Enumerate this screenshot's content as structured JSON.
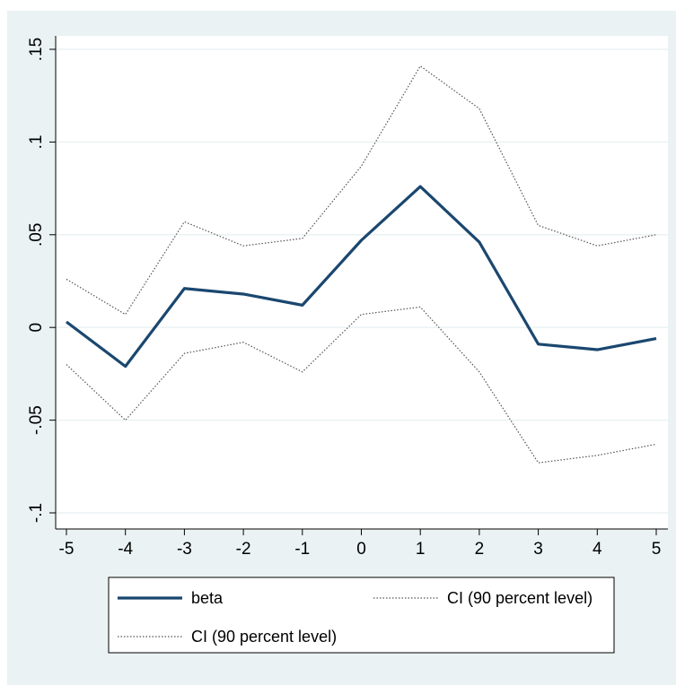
{
  "chart_data": {
    "type": "line",
    "x": [
      -5,
      -4,
      -3,
      -2,
      -1,
      0,
      1,
      2,
      3,
      4,
      5
    ],
    "series": [
      {
        "name": "beta",
        "style": "solid",
        "color": "#1a476f",
        "values": [
          0.003,
          -0.021,
          0.021,
          0.018,
          0.012,
          0.047,
          0.076,
          0.046,
          -0.009,
          -0.012,
          -0.006
        ]
      },
      {
        "name": "CI (90 percent level)",
        "style": "dotted",
        "color": "#555555",
        "values": [
          0.026,
          0.007,
          0.057,
          0.044,
          0.048,
          0.087,
          0.141,
          0.118,
          0.055,
          0.044,
          0.05
        ]
      },
      {
        "name": "CI (90 percent level)",
        "style": "dotted",
        "color": "#555555",
        "values": [
          -0.02,
          -0.05,
          -0.014,
          -0.008,
          -0.024,
          0.007,
          0.011,
          -0.024,
          -0.073,
          -0.069,
          -0.063
        ]
      }
    ],
    "xticks": [
      "-5",
      "-4",
      "-3",
      "-2",
      "-1",
      "0",
      "1",
      "2",
      "3",
      "4",
      "5"
    ],
    "yticks": [
      {
        "value": -0.1,
        "label": "-.1"
      },
      {
        "value": -0.05,
        "label": "-.05"
      },
      {
        "value": 0,
        "label": "0"
      },
      {
        "value": 0.05,
        "label": ".05"
      },
      {
        "value": 0.1,
        "label": ".1"
      },
      {
        "value": 0.15,
        "label": ".15"
      }
    ],
    "xlim": [
      -5,
      5
    ],
    "ylim": [
      -0.1,
      0.15
    ],
    "grid": true,
    "legend_position": "bottom",
    "colors": {
      "background": "#eaf2f3",
      "plot_area": "#ffffff",
      "grid": "#eaf2f3"
    }
  }
}
